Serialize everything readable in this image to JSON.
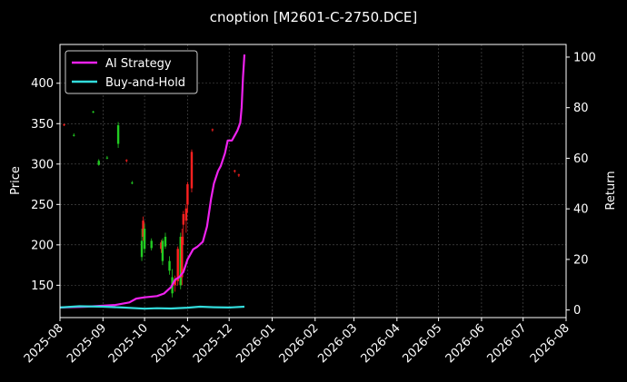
{
  "chart_data": {
    "type": "candlestick+line",
    "title": "cnoption [M2601-C-2750.DCE]",
    "xlabel": "",
    "ylabel_left": "Price",
    "ylabel_right": "Return",
    "x_ticks": [
      "2025-08",
      "2025-09",
      "2025-10",
      "2025-11",
      "2025-12",
      "2026-01",
      "2026-02",
      "2026-03",
      "2026-04",
      "2026-05",
      "2026-06",
      "2026-07",
      "2026-08"
    ],
    "x_range": [
      "2025-08-01",
      "2026-08-01"
    ],
    "ylim_left": [
      110,
      448
    ],
    "yticks_left": [
      150,
      200,
      250,
      300,
      350,
      400
    ],
    "ylim_right": [
      -3,
      105
    ],
    "yticks_right": [
      0,
      20,
      40,
      60,
      80,
      100
    ],
    "grid": true,
    "legend_position": "upper-left",
    "colors": {
      "up": "#ff2020",
      "down": "#22cc22",
      "ai": "#ee22ee",
      "bh": "#33dddd",
      "grid": "#555555"
    },
    "series": [
      {
        "name": "AI Strategy",
        "axis": "right",
        "x": [
          "2025-08-01",
          "2025-08-20",
          "2025-09-10",
          "2025-09-20",
          "2025-09-25",
          "2025-10-01",
          "2025-10-10",
          "2025-10-15",
          "2025-10-20",
          "2025-10-23",
          "2025-10-26",
          "2025-10-29",
          "2025-11-01",
          "2025-11-05",
          "2025-11-08",
          "2025-11-12",
          "2025-11-15",
          "2025-11-18",
          "2025-11-20",
          "2025-11-23",
          "2025-11-25",
          "2025-11-28",
          "2025-11-30",
          "2025-12-03",
          "2025-12-05",
          "2025-12-07",
          "2025-12-09",
          "2025-12-10",
          "2025-12-11",
          "2025-12-12"
        ],
        "y": [
          1,
          1.3,
          2,
          3,
          4.5,
          5,
          5.5,
          6.5,
          9,
          12,
          13,
          15,
          20,
          24,
          25,
          27,
          33,
          44,
          50,
          55,
          57,
          62,
          67,
          67,
          69,
          71,
          74,
          80,
          92,
          101
        ]
      },
      {
        "name": "Buy-and-Hold",
        "axis": "right",
        "x": [
          "2025-08-01",
          "2025-08-15",
          "2025-09-01",
          "2025-09-15",
          "2025-10-01",
          "2025-10-10",
          "2025-10-20",
          "2025-11-01",
          "2025-11-10",
          "2025-11-20",
          "2025-12-01",
          "2025-12-12"
        ],
        "y": [
          1,
          1.5,
          1.3,
          1,
          0.5,
          0.7,
          0.6,
          0.9,
          1.3,
          1.1,
          1,
          1.3
        ]
      }
    ],
    "candles": [
      {
        "date": "2025-08-04",
        "open": 348,
        "high": 350,
        "low": 347,
        "close": 349
      },
      {
        "date": "2025-08-11",
        "open": 336,
        "high": 338,
        "low": 334,
        "close": 335
      },
      {
        "date": "2025-08-25",
        "open": 365,
        "high": 366,
        "low": 363,
        "close": 364
      },
      {
        "date": "2025-08-29",
        "open": 304,
        "high": 306,
        "low": 298,
        "close": 299
      },
      {
        "date": "2025-09-04",
        "open": 308,
        "high": 310,
        "low": 306,
        "close": 307
      },
      {
        "date": "2025-09-12",
        "open": 348,
        "high": 352,
        "low": 320,
        "close": 325
      },
      {
        "date": "2025-09-18",
        "open": 304,
        "high": 306,
        "low": 302,
        "close": 305
      },
      {
        "date": "2025-09-22",
        "open": 277,
        "high": 279,
        "low": 275,
        "close": 276
      },
      {
        "date": "2025-09-29",
        "open": 205,
        "high": 220,
        "low": 180,
        "close": 185
      },
      {
        "date": "2025-09-30",
        "open": 210,
        "high": 235,
        "low": 205,
        "close": 230
      },
      {
        "date": "2025-10-01",
        "open": 220,
        "high": 226,
        "low": 190,
        "close": 195
      },
      {
        "date": "2025-10-06",
        "open": 205,
        "high": 208,
        "low": 193,
        "close": 196
      },
      {
        "date": "2025-10-13",
        "open": 195,
        "high": 206,
        "low": 190,
        "close": 203
      },
      {
        "date": "2025-10-14",
        "open": 205,
        "high": 208,
        "low": 175,
        "close": 180
      },
      {
        "date": "2025-10-16",
        "open": 210,
        "high": 215,
        "low": 195,
        "close": 198
      },
      {
        "date": "2025-10-19",
        "open": 180,
        "high": 186,
        "low": 163,
        "close": 168
      },
      {
        "date": "2025-10-21",
        "open": 160,
        "high": 170,
        "low": 135,
        "close": 140
      },
      {
        "date": "2025-10-23",
        "open": 150,
        "high": 162,
        "low": 142,
        "close": 158
      },
      {
        "date": "2025-10-25",
        "open": 155,
        "high": 198,
        "low": 150,
        "close": 195
      },
      {
        "date": "2025-10-27",
        "open": 210,
        "high": 215,
        "low": 145,
        "close": 150
      },
      {
        "date": "2025-10-28",
        "open": 160,
        "high": 220,
        "low": 150,
        "close": 210
      },
      {
        "date": "2025-10-29",
        "open": 225,
        "high": 242,
        "low": 200,
        "close": 238
      },
      {
        "date": "2025-10-31",
        "open": 230,
        "high": 250,
        "low": 215,
        "close": 245
      },
      {
        "date": "2025-11-01",
        "open": 250,
        "high": 278,
        "low": 240,
        "close": 275
      },
      {
        "date": "2025-11-04",
        "open": 270,
        "high": 318,
        "low": 265,
        "close": 315
      },
      {
        "date": "2025-11-19",
        "open": 342,
        "high": 344,
        "low": 340,
        "close": 343
      },
      {
        "date": "2025-12-05",
        "open": 291,
        "high": 293,
        "low": 289,
        "close": 292
      },
      {
        "date": "2025-12-08",
        "open": 286,
        "high": 288,
        "low": 284,
        "close": 287
      }
    ]
  }
}
